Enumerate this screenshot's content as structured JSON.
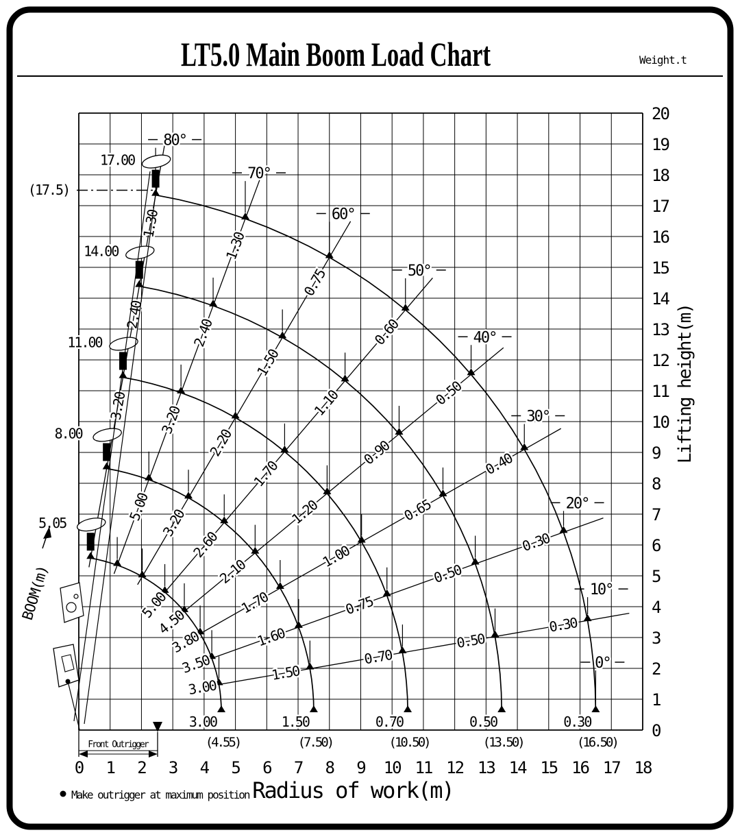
{
  "title": "LT5.0 Main Boom Load Chart",
  "weight_unit_label": "Weight.t",
  "axes": {
    "x_label": "Radius of work(m)",
    "y_label": "Lifting height(m)",
    "x_min": 0,
    "x_max": 18,
    "y_min": 0,
    "y_max": 20,
    "x_ticks": [
      0,
      1,
      2,
      3,
      4,
      5,
      6,
      7,
      8,
      9,
      10,
      11,
      12,
      13,
      14,
      15,
      16,
      17,
      18
    ],
    "y_ticks": [
      0,
      1,
      2,
      3,
      4,
      5,
      6,
      7,
      8,
      9,
      10,
      11,
      12,
      13,
      14,
      15,
      16,
      17,
      18,
      19,
      20
    ]
  },
  "max_height": {
    "label": "(17.5)",
    "value": 17.5
  },
  "notes": {
    "front_outrigger_label": "Front Outrigger",
    "outrigger_note": "Make outrigger at maximum position",
    "boom_axis_label": "BOOM(m)"
  },
  "chart_data": {
    "type": "line",
    "title": "LT5.0 Main Boom Load Chart",
    "units": {
      "load": "t",
      "radius": "m",
      "height": "m"
    },
    "xlabel": "Radius of work(m)",
    "ylabel": "Lifting height(m)",
    "xlim": [
      0,
      18
    ],
    "ylim": [
      0,
      20
    ],
    "grid": true,
    "pivot": {
      "x": -0.5,
      "y": 0.6
    },
    "angles": [
      {
        "deg": 0,
        "label": "0°"
      },
      {
        "deg": 10,
        "label": "10°"
      },
      {
        "deg": 20,
        "label": "20°"
      },
      {
        "deg": 30,
        "label": "30°"
      },
      {
        "deg": 40,
        "label": "40°"
      },
      {
        "deg": 50,
        "label": "50°"
      },
      {
        "deg": 60,
        "label": "60°"
      },
      {
        "deg": 70,
        "label": "70°"
      },
      {
        "deg": 80,
        "label": "80°"
      }
    ],
    "booms": [
      {
        "label": "5.05",
        "length": 5.05,
        "max_radius": 4.55,
        "max_radius_label": "(4.55)",
        "capacities": {
          "0": "3.00",
          "10": "3.00",
          "20": "3.50",
          "30": "3.80",
          "40": "4.50",
          "50": "5.00"
        }
      },
      {
        "label": "8.00",
        "length": 8.0,
        "max_radius": 7.5,
        "max_radius_label": "(7.50)",
        "capacities": {
          "0": "1.50",
          "10": "1.50",
          "20": "1.60",
          "30": "1.70",
          "40": "2.10",
          "50": "2.60",
          "60": "3.20",
          "70": "5.00"
        }
      },
      {
        "label": "11.00",
        "length": 11.0,
        "max_radius": 10.5,
        "max_radius_label": "(10.50)",
        "capacities": {
          "0": "0.70",
          "10": "0.70",
          "20": "0.75",
          "30": "1.00",
          "40": "1.20",
          "50": "1.70",
          "60": "2.20",
          "70": "3.20",
          "80": "3.20"
        }
      },
      {
        "label": "14.00",
        "length": 14.0,
        "max_radius": 13.5,
        "max_radius_label": "(13.50)",
        "capacities": {
          "0": "0.50",
          "10": "0.50",
          "20": "0.50",
          "30": "0.65",
          "40": "0.90",
          "50": "1.10",
          "60": "1.50",
          "70": "2.40",
          "80": "2.40"
        }
      },
      {
        "label": "17.00",
        "length": 17.0,
        "max_radius": 16.5,
        "max_radius_label": "(16.50)",
        "capacities": {
          "0": "0.30",
          "10": "0.30",
          "20": "0.30",
          "30": "0.40",
          "40": "0.50",
          "50": "0.60",
          "60": "0.75",
          "70": "1.30",
          "80": "1.30"
        }
      }
    ]
  }
}
